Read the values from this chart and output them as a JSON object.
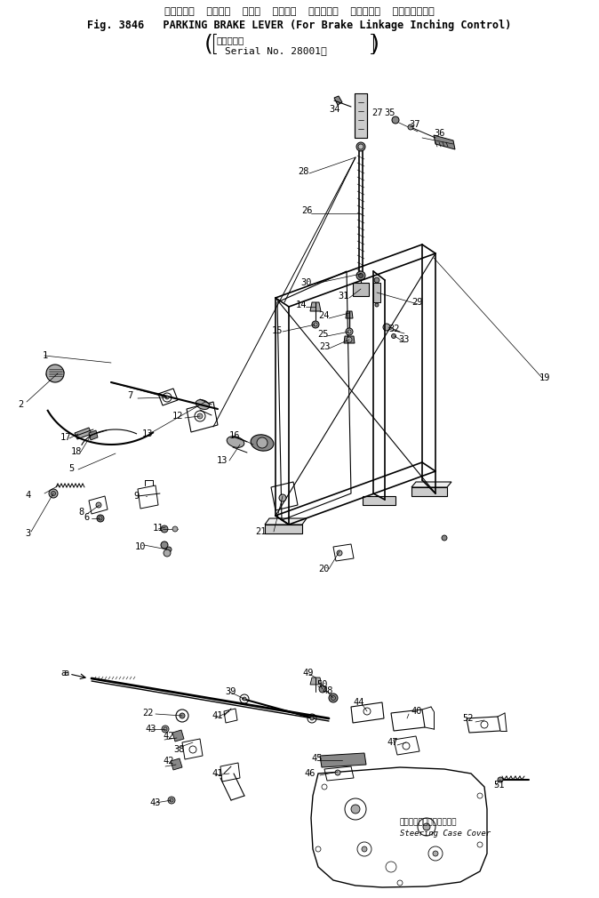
{
  "title_jp": "パーキング  ブレーキ  レバー  ブレーキ  リンケージ  インチング  コントロール用",
  "title_en": "Fig. 3846   PARKING BRAKE LEVER (For Brake Linkage Inching Control)",
  "serial_jp": "（適用号機",
  "serial_en": "Serial No. 28001～",
  "steering_jp": "ステアリングケースカバー",
  "steering_en": "Steering Case Cover",
  "bg": "#ffffff",
  "lc": "#000000",
  "fs": 7.5,
  "fs_title": 8.5
}
